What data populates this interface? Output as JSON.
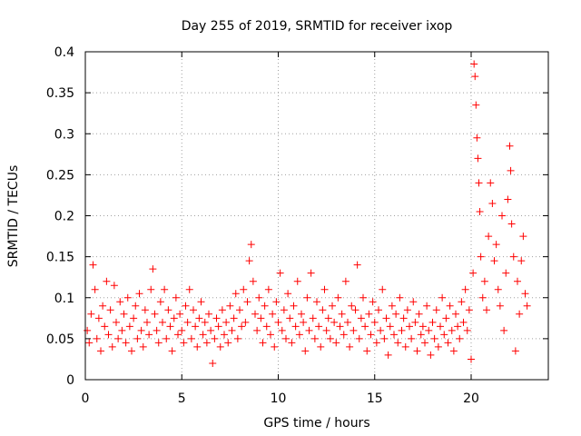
{
  "chart_data": {
    "type": "scatter",
    "title": "Day 255 of 2019, SRMTID for receiver ixop",
    "xlabel": "GPS time / hours",
    "ylabel": "SRMTID / TECUs",
    "xlim": [
      0,
      24
    ],
    "ylim": [
      0,
      0.4
    ],
    "xticks": [
      0,
      5,
      10,
      15,
      20
    ],
    "yticks": [
      0,
      0.05,
      0.1,
      0.15,
      0.2,
      0.25,
      0.3,
      0.35,
      0.4
    ],
    "xtick_labels": [
      "0",
      "5",
      "10",
      "15",
      "20"
    ],
    "ytick_labels": [
      "0",
      "0.05",
      "0.1",
      "0.15",
      "0.2",
      "0.25",
      "0.3",
      "0.35",
      "0.4"
    ],
    "grid": true,
    "marker": "+",
    "color": "#ff0000",
    "series": [
      {
        "name": "SRMTID",
        "points": [
          [
            0.1,
            0.06
          ],
          [
            0.2,
            0.045
          ],
          [
            0.3,
            0.08
          ],
          [
            0.4,
            0.14
          ],
          [
            0.5,
            0.11
          ],
          [
            0.6,
            0.05
          ],
          [
            0.7,
            0.075
          ],
          [
            0.8,
            0.035
          ],
          [
            0.9,
            0.09
          ],
          [
            1.0,
            0.065
          ],
          [
            1.1,
            0.12
          ],
          [
            1.2,
            0.055
          ],
          [
            1.3,
            0.085
          ],
          [
            1.4,
            0.04
          ],
          [
            1.5,
            0.115
          ],
          [
            1.6,
            0.07
          ],
          [
            1.7,
            0.05
          ],
          [
            1.8,
            0.095
          ],
          [
            1.9,
            0.06
          ],
          [
            2.0,
            0.08
          ],
          [
            2.1,
            0.045
          ],
          [
            2.2,
            0.1
          ],
          [
            2.3,
            0.065
          ],
          [
            2.4,
            0.035
          ],
          [
            2.5,
            0.075
          ],
          [
            2.6,
            0.09
          ],
          [
            2.7,
            0.05
          ],
          [
            2.8,
            0.105
          ],
          [
            2.9,
            0.06
          ],
          [
            3.0,
            0.04
          ],
          [
            3.1,
            0.085
          ],
          [
            3.2,
            0.07
          ],
          [
            3.3,
            0.055
          ],
          [
            3.4,
            0.11
          ],
          [
            3.5,
            0.135
          ],
          [
            3.6,
            0.08
          ],
          [
            3.7,
            0.06
          ],
          [
            3.8,
            0.045
          ],
          [
            3.9,
            0.095
          ],
          [
            4.0,
            0.07
          ],
          [
            4.1,
            0.11
          ],
          [
            4.2,
            0.05
          ],
          [
            4.3,
            0.085
          ],
          [
            4.4,
            0.065
          ],
          [
            4.5,
            0.035
          ],
          [
            4.6,
            0.075
          ],
          [
            4.7,
            0.1
          ],
          [
            4.8,
            0.055
          ],
          [
            4.9,
            0.08
          ],
          [
            5.0,
            0.06
          ],
          [
            5.1,
            0.045
          ],
          [
            5.2,
            0.09
          ],
          [
            5.3,
            0.07
          ],
          [
            5.4,
            0.11
          ],
          [
            5.5,
            0.05
          ],
          [
            5.6,
            0.085
          ],
          [
            5.7,
            0.065
          ],
          [
            5.8,
            0.04
          ],
          [
            5.9,
            0.075
          ],
          [
            6.0,
            0.095
          ],
          [
            6.1,
            0.055
          ],
          [
            6.2,
            0.07
          ],
          [
            6.3,
            0.045
          ],
          [
            6.4,
            0.08
          ],
          [
            6.5,
            0.06
          ],
          [
            6.6,
            0.02
          ],
          [
            6.7,
            0.05
          ],
          [
            6.8,
            0.075
          ],
          [
            6.9,
            0.065
          ],
          [
            7.0,
            0.04
          ],
          [
            7.1,
            0.085
          ],
          [
            7.2,
            0.055
          ],
          [
            7.3,
            0.07
          ],
          [
            7.4,
            0.045
          ],
          [
            7.5,
            0.09
          ],
          [
            7.6,
            0.06
          ],
          [
            7.7,
            0.075
          ],
          [
            7.8,
            0.105
          ],
          [
            7.9,
            0.05
          ],
          [
            8.0,
            0.085
          ],
          [
            8.1,
            0.065
          ],
          [
            8.2,
            0.11
          ],
          [
            8.3,
            0.07
          ],
          [
            8.4,
            0.095
          ],
          [
            8.5,
            0.145
          ],
          [
            8.6,
            0.165
          ],
          [
            8.7,
            0.12
          ],
          [
            8.8,
            0.08
          ],
          [
            8.9,
            0.06
          ],
          [
            9.0,
            0.1
          ],
          [
            9.1,
            0.075
          ],
          [
            9.2,
            0.045
          ],
          [
            9.3,
            0.09
          ],
          [
            9.4,
            0.065
          ],
          [
            9.5,
            0.11
          ],
          [
            9.6,
            0.055
          ],
          [
            9.7,
            0.08
          ],
          [
            9.8,
            0.04
          ],
          [
            9.9,
            0.095
          ],
          [
            10.0,
            0.07
          ],
          [
            10.1,
            0.13
          ],
          [
            10.2,
            0.06
          ],
          [
            10.3,
            0.085
          ],
          [
            10.4,
            0.05
          ],
          [
            10.5,
            0.105
          ],
          [
            10.6,
            0.075
          ],
          [
            10.7,
            0.045
          ],
          [
            10.8,
            0.09
          ],
          [
            10.9,
            0.065
          ],
          [
            11.0,
            0.12
          ],
          [
            11.1,
            0.055
          ],
          [
            11.2,
            0.08
          ],
          [
            11.3,
            0.07
          ],
          [
            11.4,
            0.035
          ],
          [
            11.5,
            0.1
          ],
          [
            11.6,
            0.06
          ],
          [
            11.7,
            0.13
          ],
          [
            11.8,
            0.075
          ],
          [
            11.9,
            0.05
          ],
          [
            12.0,
            0.095
          ],
          [
            12.1,
            0.065
          ],
          [
            12.2,
            0.04
          ],
          [
            12.3,
            0.085
          ],
          [
            12.4,
            0.11
          ],
          [
            12.5,
            0.06
          ],
          [
            12.6,
            0.075
          ],
          [
            12.7,
            0.05
          ],
          [
            12.8,
            0.09
          ],
          [
            12.9,
            0.07
          ],
          [
            13.0,
            0.045
          ],
          [
            13.1,
            0.1
          ],
          [
            13.2,
            0.065
          ],
          [
            13.3,
            0.08
          ],
          [
            13.4,
            0.055
          ],
          [
            13.5,
            0.12
          ],
          [
            13.6,
            0.07
          ],
          [
            13.7,
            0.04
          ],
          [
            13.8,
            0.09
          ],
          [
            13.9,
            0.06
          ],
          [
            14.0,
            0.085
          ],
          [
            14.1,
            0.14
          ],
          [
            14.2,
            0.05
          ],
          [
            14.3,
            0.075
          ],
          [
            14.4,
            0.1
          ],
          [
            14.5,
            0.065
          ],
          [
            14.6,
            0.035
          ],
          [
            14.7,
            0.08
          ],
          [
            14.8,
            0.055
          ],
          [
            14.9,
            0.095
          ],
          [
            15.0,
            0.07
          ],
          [
            15.1,
            0.045
          ],
          [
            15.2,
            0.085
          ],
          [
            15.3,
            0.06
          ],
          [
            15.4,
            0.11
          ],
          [
            15.5,
            0.05
          ],
          [
            15.6,
            0.075
          ],
          [
            15.7,
            0.03
          ],
          [
            15.8,
            0.065
          ],
          [
            15.9,
            0.09
          ],
          [
            16.0,
            0.055
          ],
          [
            16.1,
            0.08
          ],
          [
            16.2,
            0.045
          ],
          [
            16.3,
            0.1
          ],
          [
            16.4,
            0.06
          ],
          [
            16.5,
            0.075
          ],
          [
            16.6,
            0.04
          ],
          [
            16.7,
            0.085
          ],
          [
            16.8,
            0.065
          ],
          [
            16.9,
            0.05
          ],
          [
            17.0,
            0.095
          ],
          [
            17.1,
            0.07
          ],
          [
            17.2,
            0.035
          ],
          [
            17.3,
            0.08
          ],
          [
            17.4,
            0.055
          ],
          [
            17.5,
            0.065
          ],
          [
            17.6,
            0.045
          ],
          [
            17.7,
            0.09
          ],
          [
            17.8,
            0.06
          ],
          [
            17.9,
            0.03
          ],
          [
            18.0,
            0.07
          ],
          [
            18.1,
            0.05
          ],
          [
            18.2,
            0.085
          ],
          [
            18.3,
            0.04
          ],
          [
            18.4,
            0.065
          ],
          [
            18.5,
            0.1
          ],
          [
            18.6,
            0.055
          ],
          [
            18.7,
            0.075
          ],
          [
            18.8,
            0.045
          ],
          [
            18.9,
            0.09
          ],
          [
            19.0,
            0.06
          ],
          [
            19.1,
            0.035
          ],
          [
            19.2,
            0.08
          ],
          [
            19.3,
            0.065
          ],
          [
            19.4,
            0.05
          ],
          [
            19.5,
            0.095
          ],
          [
            19.6,
            0.07
          ],
          [
            19.7,
            0.11
          ],
          [
            19.8,
            0.06
          ],
          [
            19.9,
            0.085
          ],
          [
            20.0,
            0.025
          ],
          [
            20.1,
            0.13
          ],
          [
            20.15,
            0.385
          ],
          [
            20.2,
            0.37
          ],
          [
            20.25,
            0.335
          ],
          [
            20.3,
            0.295
          ],
          [
            20.35,
            0.27
          ],
          [
            20.4,
            0.24
          ],
          [
            20.45,
            0.205
          ],
          [
            20.5,
            0.15
          ],
          [
            20.6,
            0.1
          ],
          [
            20.7,
            0.12
          ],
          [
            20.8,
            0.085
          ],
          [
            20.9,
            0.175
          ],
          [
            21.0,
            0.24
          ],
          [
            21.1,
            0.215
          ],
          [
            21.2,
            0.145
          ],
          [
            21.3,
            0.165
          ],
          [
            21.4,
            0.11
          ],
          [
            21.5,
            0.09
          ],
          [
            21.6,
            0.2
          ],
          [
            21.7,
            0.06
          ],
          [
            21.8,
            0.13
          ],
          [
            21.9,
            0.22
          ],
          [
            22.0,
            0.285
          ],
          [
            22.05,
            0.255
          ],
          [
            22.1,
            0.19
          ],
          [
            22.2,
            0.15
          ],
          [
            22.3,
            0.035
          ],
          [
            22.4,
            0.12
          ],
          [
            22.5,
            0.08
          ],
          [
            22.6,
            0.145
          ],
          [
            22.7,
            0.175
          ],
          [
            22.8,
            0.105
          ],
          [
            22.9,
            0.09
          ]
        ]
      }
    ]
  }
}
